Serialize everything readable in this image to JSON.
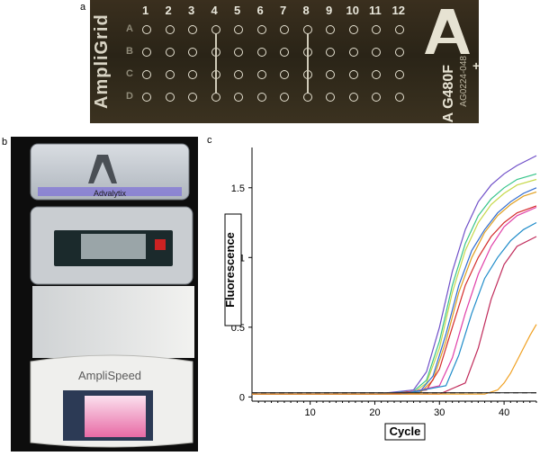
{
  "panels": {
    "a": "a",
    "b": "b",
    "c": "c"
  },
  "ampligrid": {
    "brand": "AmpliGrid",
    "columns": [
      "1",
      "2",
      "3",
      "4",
      "5",
      "6",
      "7",
      "8",
      "9",
      "10",
      "11",
      "12"
    ],
    "rows": [
      "A",
      "B",
      "C",
      "D"
    ],
    "plus": "+",
    "code_main": "A G480F",
    "code_small": "AG0224-048"
  },
  "instrument": {
    "lid_brand": "Advalytix",
    "base_brand": "AmpliSpeed"
  },
  "chart_data": {
    "type": "line",
    "xlabel": "Cycle",
    "ylabel": "Fluorescence",
    "xlim": [
      1,
      45
    ],
    "ylim": [
      -0.03,
      1.75
    ],
    "xticks": [
      10,
      20,
      30,
      40
    ],
    "yticks": [
      0,
      0.5,
      1,
      1.5
    ],
    "ytick_labels": [
      "0",
      "0.5",
      "1",
      "1.5"
    ],
    "grid": false,
    "threshold": 0.03,
    "series": [
      {
        "color": "#6f4fc8",
        "x": [
          1,
          20,
          26,
          28,
          30,
          32,
          34,
          36,
          38,
          40,
          42,
          45
        ],
        "y": [
          0.02,
          0.02,
          0.05,
          0.18,
          0.5,
          0.9,
          1.2,
          1.4,
          1.52,
          1.6,
          1.66,
          1.73
        ]
      },
      {
        "color": "#36c48a",
        "x": [
          1,
          20,
          26,
          28,
          30,
          32,
          34,
          36,
          38,
          40,
          42,
          45
        ],
        "y": [
          0.02,
          0.02,
          0.04,
          0.12,
          0.4,
          0.8,
          1.1,
          1.3,
          1.42,
          1.5,
          1.56,
          1.6
        ]
      },
      {
        "color": "#c6d84a",
        "x": [
          1,
          20,
          26,
          28,
          30,
          32,
          34,
          36,
          38,
          40,
          42,
          45
        ],
        "y": [
          0.02,
          0.02,
          0.03,
          0.1,
          0.35,
          0.75,
          1.05,
          1.25,
          1.38,
          1.46,
          1.52,
          1.56
        ]
      },
      {
        "color": "#2f6bd0",
        "x": [
          1,
          20,
          27,
          29,
          31,
          33,
          35,
          37,
          39,
          41,
          43,
          45
        ],
        "y": [
          0.02,
          0.02,
          0.04,
          0.15,
          0.45,
          0.8,
          1.05,
          1.2,
          1.32,
          1.4,
          1.46,
          1.5
        ]
      },
      {
        "color": "#e0a020",
        "x": [
          1,
          20,
          27,
          29,
          31,
          33,
          35,
          37,
          39,
          41,
          43,
          45
        ],
        "y": [
          0.02,
          0.02,
          0.03,
          0.12,
          0.4,
          0.75,
          1.0,
          1.18,
          1.3,
          1.38,
          1.44,
          1.47
        ]
      },
      {
        "color": "#d42a2a",
        "x": [
          1,
          22,
          28,
          30,
          32,
          34,
          36,
          38,
          40,
          42,
          45
        ],
        "y": [
          0.02,
          0.02,
          0.05,
          0.2,
          0.5,
          0.8,
          1.0,
          1.15,
          1.25,
          1.32,
          1.37
        ]
      },
      {
        "color": "#e040a8",
        "x": [
          1,
          24,
          30,
          32,
          34,
          36,
          38,
          40,
          42,
          45
        ],
        "y": [
          0.02,
          0.02,
          0.08,
          0.28,
          0.6,
          0.88,
          1.08,
          1.22,
          1.3,
          1.36
        ]
      },
      {
        "color": "#1e8bc9",
        "x": [
          1,
          24,
          31,
          33,
          35,
          37,
          39,
          41,
          43,
          45
        ],
        "y": [
          0.02,
          0.02,
          0.08,
          0.3,
          0.6,
          0.85,
          1.0,
          1.12,
          1.2,
          1.25
        ]
      },
      {
        "color": "#c02a5a",
        "x": [
          1,
          30,
          34,
          36,
          38,
          40,
          42,
          45
        ],
        "y": [
          0.02,
          0.02,
          0.1,
          0.35,
          0.7,
          0.95,
          1.08,
          1.15
        ]
      },
      {
        "color": "#f0a020",
        "x": [
          1,
          37,
          39,
          40,
          41,
          42,
          43,
          44,
          45
        ],
        "y": [
          0.02,
          0.02,
          0.05,
          0.1,
          0.17,
          0.26,
          0.35,
          0.44,
          0.52
        ]
      },
      {
        "color": "#2a2a2a",
        "x": [
          1,
          45
        ],
        "y": [
          0.03,
          0.03
        ]
      }
    ]
  }
}
